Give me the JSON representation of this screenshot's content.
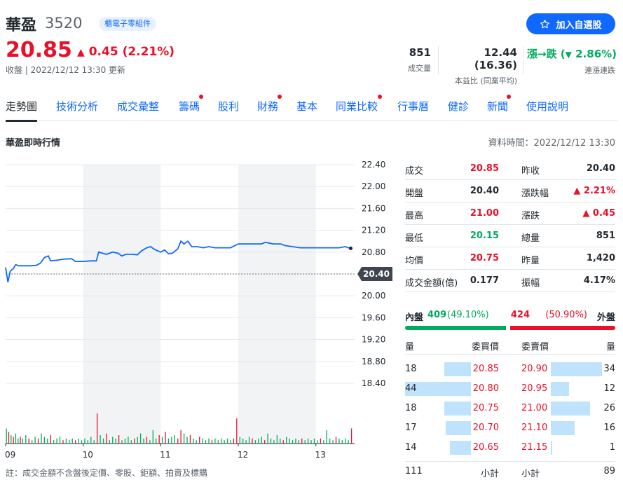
{
  "stock": {
    "name": "華盈",
    "code": "3520",
    "sector": "櫃電子零組件"
  },
  "watch_label": "加入自選股",
  "price": "20.85",
  "change": "0.45 (2.21%)",
  "status": "收盤 | 2022/12/12 13:30 更新",
  "stats": {
    "volume": {
      "value": "851",
      "label": "成交量"
    },
    "pe": {
      "value": "12.44 (16.36)",
      "label": "本益比 (同業平均)"
    },
    "streak": {
      "value_a": "漲→跌 (",
      "value_b": "2.86%",
      "value_c": ")",
      "label": "連漲連跌"
    }
  },
  "tabs": [
    "走勢圖",
    "技術分析",
    "成交彙整",
    "籌碼",
    "股利",
    "財務",
    "基本",
    "同業比較",
    "行事曆",
    "健診",
    "新聞",
    "使用說明"
  ],
  "section_title": "華盈即時行情",
  "data_time": "資料時間：2022/12/12 13:30",
  "note": "註：成交金額不含盤後定價、零股、鉅額、拍賣及標購",
  "colors": {
    "up": "#eb0f29",
    "down": "#00ab5e",
    "accent": "#0f69ff",
    "line": "#0f69ff"
  },
  "quote": {
    "rows": [
      {
        "l1": "成交",
        "v1": "20.85",
        "c1": "up",
        "l2": "昨收",
        "v2": "20.40",
        "c2": ""
      },
      {
        "l1": "開盤",
        "v1": "20.40",
        "c1": "",
        "l2": "漲跌幅",
        "v2": "▲ 2.21%",
        "c2": "up"
      },
      {
        "l1": "最高",
        "v1": "21.00",
        "c1": "up",
        "l2": "漲跌",
        "v2": "▲ 0.45",
        "c2": "up"
      },
      {
        "l1": "最低",
        "v1": "20.15",
        "c1": "down",
        "l2": "總量",
        "v2": "851",
        "c2": ""
      },
      {
        "l1": "均價",
        "v1": "20.75",
        "c1": "up",
        "l2": "昨量",
        "v2": "1,420",
        "c2": ""
      },
      {
        "l1": "成交金額(億)",
        "v1": "0.177",
        "c1": "",
        "l2": "振幅",
        "v2": "4.17%",
        "c2": ""
      }
    ]
  },
  "inner_outer": {
    "inner_label": "內盤",
    "inner_value": "409",
    "inner_pct": "(49.10%)",
    "outer_value": "424",
    "outer_pct": "(50.90%)",
    "outer_label": "外盤",
    "inner_fraction": 0.491
  },
  "orderbook": {
    "headers": {
      "bid_qty": "量",
      "bid_price": "委買價",
      "ask_price": "委賣價",
      "ask_qty": "量"
    },
    "rows": [
      {
        "bid_qty": "18",
        "bid_qty_n": 18,
        "bid_price": "20.85",
        "ask_price": "20.90",
        "ask_qty": "34",
        "ask_qty_n": 34
      },
      {
        "bid_qty": "44",
        "bid_qty_n": 44,
        "bid_price": "20.80",
        "ask_price": "20.95",
        "ask_qty": "12",
        "ask_qty_n": 12
      },
      {
        "bid_qty": "18",
        "bid_qty_n": 18,
        "bid_price": "20.75",
        "ask_price": "21.00",
        "ask_qty": "26",
        "ask_qty_n": 26
      },
      {
        "bid_qty": "17",
        "bid_qty_n": 17,
        "bid_price": "20.70",
        "ask_price": "21.10",
        "ask_qty": "16",
        "ask_qty_n": 16
      },
      {
        "bid_qty": "14",
        "bid_qty_n": 14,
        "bid_price": "20.65",
        "ask_price": "21.15",
        "ask_qty": "1",
        "ask_qty_n": 1
      }
    ],
    "bid_total": "111",
    "bid_total_label": "小計",
    "ask_total_label": "小計",
    "ask_total": "89"
  },
  "chart_data": {
    "type": "line",
    "y_ticks": [
      "22.40",
      "22.00",
      "21.60",
      "21.20",
      "20.80",
      "20.40",
      "20.00",
      "19.60",
      "19.20",
      "18.80",
      "18.40"
    ],
    "x_ticks": [
      "09",
      "10",
      "11",
      "12",
      "13"
    ],
    "prev_close": 20.4,
    "prev_close_label": "20.40",
    "ylim": [
      18.4,
      22.4
    ],
    "xlim": [
      9.0,
      13.5
    ],
    "price_series": [
      [
        9.0,
        20.52
      ],
      [
        9.03,
        20.25
      ],
      [
        9.06,
        20.45
      ],
      [
        9.1,
        20.5
      ],
      [
        9.13,
        20.57
      ],
      [
        9.17,
        20.55
      ],
      [
        9.25,
        20.55
      ],
      [
        9.33,
        20.55
      ],
      [
        9.4,
        20.56
      ],
      [
        9.45,
        20.6
      ],
      [
        9.5,
        20.7
      ],
      [
        9.55,
        20.73
      ],
      [
        9.58,
        20.64
      ],
      [
        9.65,
        20.65
      ],
      [
        9.75,
        20.67
      ],
      [
        9.85,
        20.68
      ],
      [
        9.9,
        20.63
      ],
      [
        10.0,
        20.63
      ],
      [
        10.1,
        20.64
      ],
      [
        10.17,
        20.64
      ],
      [
        10.2,
        20.8
      ],
      [
        10.25,
        20.78
      ],
      [
        10.3,
        20.76
      ],
      [
        10.38,
        20.8
      ],
      [
        10.45,
        20.78
      ],
      [
        10.5,
        20.73
      ],
      [
        10.55,
        20.76
      ],
      [
        10.63,
        20.76
      ],
      [
        10.7,
        20.75
      ],
      [
        10.75,
        20.82
      ],
      [
        10.82,
        20.88
      ],
      [
        10.87,
        20.9
      ],
      [
        10.92,
        20.85
      ],
      [
        11.0,
        20.8
      ],
      [
        11.05,
        20.84
      ],
      [
        11.1,
        20.77
      ],
      [
        11.15,
        20.78
      ],
      [
        11.22,
        20.86
      ],
      [
        11.26,
        21.0
      ],
      [
        11.3,
        20.95
      ],
      [
        11.35,
        21.0
      ],
      [
        11.4,
        20.9
      ],
      [
        11.47,
        20.9
      ],
      [
        11.55,
        20.88
      ],
      [
        11.62,
        20.9
      ],
      [
        11.7,
        20.88
      ],
      [
        11.8,
        20.88
      ],
      [
        11.9,
        20.88
      ],
      [
        12.0,
        20.95
      ],
      [
        12.15,
        20.95
      ],
      [
        12.3,
        20.95
      ],
      [
        12.35,
        20.98
      ],
      [
        12.45,
        20.95
      ],
      [
        12.55,
        20.95
      ],
      [
        12.6,
        20.92
      ],
      [
        12.7,
        20.9
      ],
      [
        12.8,
        20.88
      ],
      [
        12.95,
        20.88
      ],
      [
        13.1,
        20.88
      ],
      [
        13.3,
        20.88
      ],
      [
        13.38,
        20.9
      ],
      [
        13.42,
        20.88
      ],
      [
        13.45,
        20.87
      ]
    ],
    "volume_bars": [
      [
        9.01,
        9,
        "down"
      ],
      [
        9.04,
        7,
        "up"
      ],
      [
        9.07,
        5,
        "down"
      ],
      [
        9.1,
        4,
        "up"
      ],
      [
        9.13,
        6,
        "down"
      ],
      [
        9.16,
        3,
        "down"
      ],
      [
        9.19,
        4,
        "up"
      ],
      [
        9.22,
        3,
        "down"
      ],
      [
        9.26,
        5,
        "down"
      ],
      [
        9.3,
        3,
        "up"
      ],
      [
        9.34,
        2,
        "down"
      ],
      [
        9.38,
        4,
        "down"
      ],
      [
        9.42,
        3,
        "up"
      ],
      [
        9.46,
        6,
        "down"
      ],
      [
        9.5,
        4,
        "down"
      ],
      [
        9.54,
        3,
        "down"
      ],
      [
        9.58,
        5,
        "up"
      ],
      [
        9.62,
        2,
        "down"
      ],
      [
        9.66,
        3,
        "down"
      ],
      [
        9.7,
        4,
        "down"
      ],
      [
        9.74,
        2,
        "up"
      ],
      [
        9.78,
        3,
        "down"
      ],
      [
        9.82,
        2,
        "down"
      ],
      [
        9.86,
        3,
        "down"
      ],
      [
        9.9,
        2,
        "up"
      ],
      [
        9.94,
        3,
        "down"
      ],
      [
        9.98,
        2,
        "down"
      ],
      [
        10.02,
        3,
        "down"
      ],
      [
        10.06,
        2,
        "down"
      ],
      [
        10.1,
        4,
        "down"
      ],
      [
        10.14,
        2,
        "down"
      ],
      [
        10.18,
        18,
        "up"
      ],
      [
        10.22,
        5,
        "down"
      ],
      [
        10.26,
        3,
        "down"
      ],
      [
        10.3,
        6,
        "up"
      ],
      [
        10.34,
        2,
        "down"
      ],
      [
        10.38,
        4,
        "down"
      ],
      [
        10.42,
        3,
        "down"
      ],
      [
        10.46,
        5,
        "up"
      ],
      [
        10.5,
        2,
        "down"
      ],
      [
        10.54,
        3,
        "down"
      ],
      [
        10.58,
        4,
        "down"
      ],
      [
        10.62,
        2,
        "down"
      ],
      [
        10.66,
        3,
        "up"
      ],
      [
        10.7,
        4,
        "down"
      ],
      [
        10.74,
        6,
        "down"
      ],
      [
        10.78,
        3,
        "down"
      ],
      [
        10.82,
        4,
        "up"
      ],
      [
        10.86,
        2,
        "down"
      ],
      [
        10.9,
        8,
        "down"
      ],
      [
        10.94,
        3,
        "down"
      ],
      [
        10.98,
        5,
        "up"
      ],
      [
        11.02,
        4,
        "down"
      ],
      [
        11.06,
        7,
        "up"
      ],
      [
        11.1,
        3,
        "down"
      ],
      [
        11.14,
        4,
        "down"
      ],
      [
        11.18,
        5,
        "down"
      ],
      [
        11.22,
        3,
        "up"
      ],
      [
        11.26,
        8,
        "up"
      ],
      [
        11.3,
        6,
        "down"
      ],
      [
        11.34,
        4,
        "down"
      ],
      [
        11.38,
        5,
        "up"
      ],
      [
        11.42,
        3,
        "down"
      ],
      [
        11.46,
        2,
        "down"
      ],
      [
        11.5,
        4,
        "up"
      ],
      [
        11.54,
        3,
        "down"
      ],
      [
        11.58,
        2,
        "down"
      ],
      [
        11.62,
        3,
        "down"
      ],
      [
        11.66,
        2,
        "up"
      ],
      [
        11.7,
        3,
        "down"
      ],
      [
        11.74,
        2,
        "down"
      ],
      [
        11.78,
        3,
        "down"
      ],
      [
        11.82,
        2,
        "down"
      ],
      [
        11.86,
        3,
        "down"
      ],
      [
        11.9,
        2,
        "down"
      ],
      [
        11.94,
        3,
        "up"
      ],
      [
        11.98,
        15,
        "up"
      ],
      [
        12.02,
        4,
        "down"
      ],
      [
        12.06,
        3,
        "down"
      ],
      [
        12.1,
        2,
        "down"
      ],
      [
        12.14,
        4,
        "down"
      ],
      [
        12.18,
        3,
        "up"
      ],
      [
        12.22,
        2,
        "down"
      ],
      [
        12.26,
        3,
        "down"
      ],
      [
        12.3,
        4,
        "down"
      ],
      [
        12.34,
        2,
        "up"
      ],
      [
        12.38,
        6,
        "down"
      ],
      [
        12.42,
        3,
        "down"
      ],
      [
        12.46,
        2,
        "down"
      ],
      [
        12.5,
        5,
        "down"
      ],
      [
        12.54,
        3,
        "down"
      ],
      [
        12.58,
        2,
        "up"
      ],
      [
        12.62,
        4,
        "down"
      ],
      [
        12.66,
        3,
        "down"
      ],
      [
        12.7,
        2,
        "down"
      ],
      [
        12.74,
        3,
        "down"
      ],
      [
        12.78,
        2,
        "down"
      ],
      [
        12.82,
        3,
        "up"
      ],
      [
        12.86,
        2,
        "down"
      ],
      [
        12.9,
        3,
        "down"
      ],
      [
        12.94,
        2,
        "down"
      ],
      [
        12.98,
        3,
        "down"
      ],
      [
        13.02,
        2,
        "down"
      ],
      [
        13.06,
        3,
        "up"
      ],
      [
        13.1,
        2,
        "down"
      ],
      [
        13.14,
        8,
        "down"
      ],
      [
        13.18,
        3,
        "down"
      ],
      [
        13.22,
        2,
        "down"
      ],
      [
        13.26,
        4,
        "up"
      ],
      [
        13.3,
        3,
        "down"
      ],
      [
        13.34,
        2,
        "down"
      ],
      [
        13.38,
        3,
        "down"
      ],
      [
        13.42,
        2,
        "down"
      ],
      [
        13.46,
        9,
        "up"
      ]
    ],
    "volume_max": 18
  }
}
